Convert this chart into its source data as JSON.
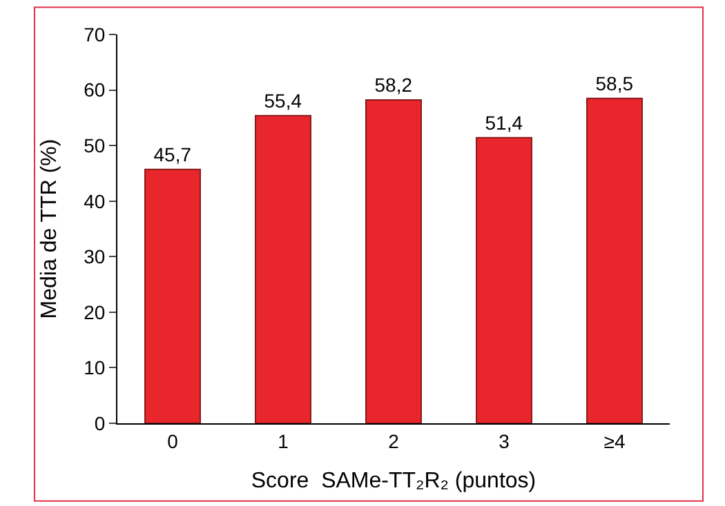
{
  "chart_data": {
    "type": "bar",
    "categories": [
      "0",
      "1",
      "2",
      "3",
      "≥4"
    ],
    "values": [
      45.7,
      55.4,
      58.2,
      51.4,
      58.5
    ],
    "value_labels": [
      "45,7",
      "55,4",
      "58,2",
      "51,4",
      "58,5"
    ],
    "color": "#e8262c",
    "xlabel": "Score  SAMe-TT₂R₂ (puntos)",
    "ylabel": "Media de TTR (%)",
    "ylim": [
      0,
      70
    ],
    "yticks": [
      0,
      10,
      20,
      30,
      40,
      50,
      60,
      70
    ]
  }
}
